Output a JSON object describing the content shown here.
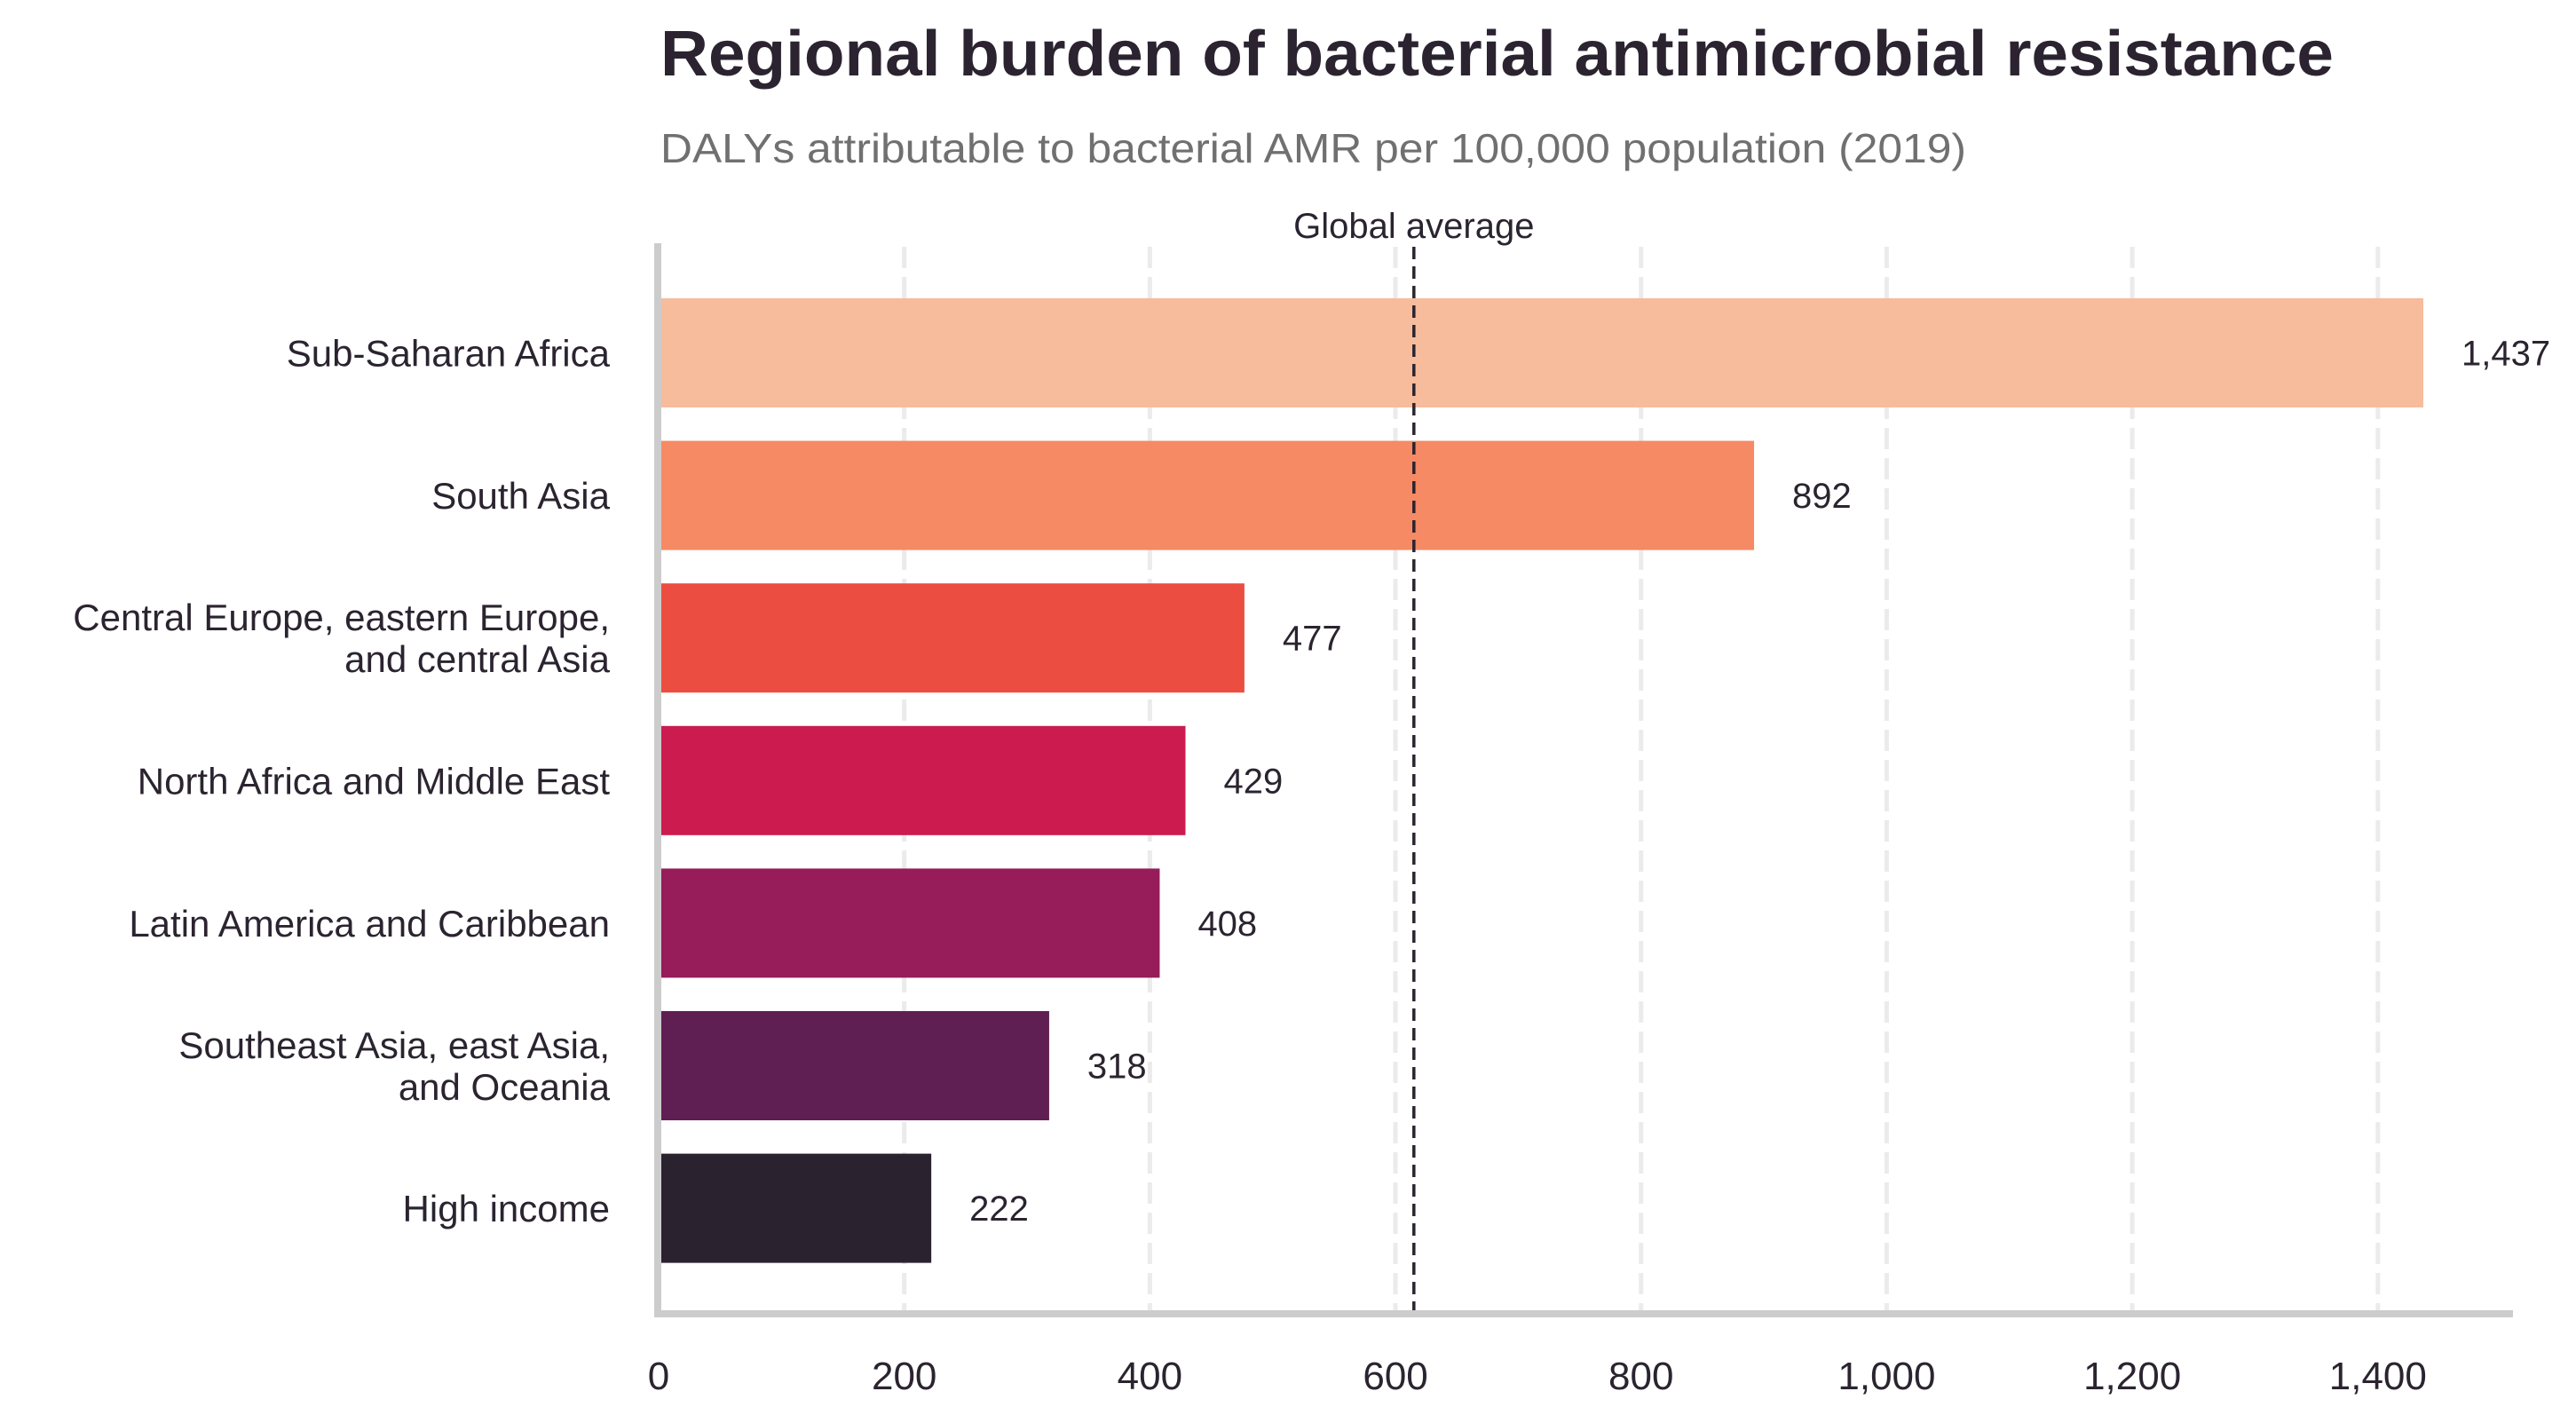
{
  "chart_data": {
    "type": "bar",
    "orientation": "horizontal",
    "title": "Regional burden of bacterial antimicrobial resistance",
    "subtitle": "DALYs attributable to bacterial AMR per 100,000 population (2019)",
    "xlabel": "",
    "ylabel": "",
    "xlim": [
      0,
      1510
    ],
    "grid": "x, dashed",
    "categories": [
      [
        "Sub-Saharan Africa"
      ],
      [
        "South Asia"
      ],
      [
        "Central Europe, eastern Europe,",
        "and central Asia"
      ],
      [
        "North Africa and Middle East"
      ],
      [
        "Latin America and Caribbean"
      ],
      [
        "Southeast Asia, east Asia,",
        "and Oceania"
      ],
      [
        "High income"
      ]
    ],
    "values": [
      1437,
      892,
      477,
      429,
      408,
      318,
      222
    ],
    "value_labels": [
      "1,437",
      "892",
      "477",
      "429",
      "408",
      "318",
      "222"
    ],
    "colors": [
      "#f6bc9c",
      "#f58a64",
      "#eb4e40",
      "#cb1b4f",
      "#961c5a",
      "#5f1f52",
      "#2b2230"
    ],
    "x_ticks": [
      0,
      200,
      400,
      600,
      800,
      1000,
      1200,
      1400
    ],
    "x_tick_labels": [
      "0",
      "200",
      "400",
      "600",
      "800",
      "1,000",
      "1,200",
      "1,400"
    ],
    "reference_line": {
      "label": "Global average",
      "value": 615,
      "style": "dashed"
    }
  }
}
